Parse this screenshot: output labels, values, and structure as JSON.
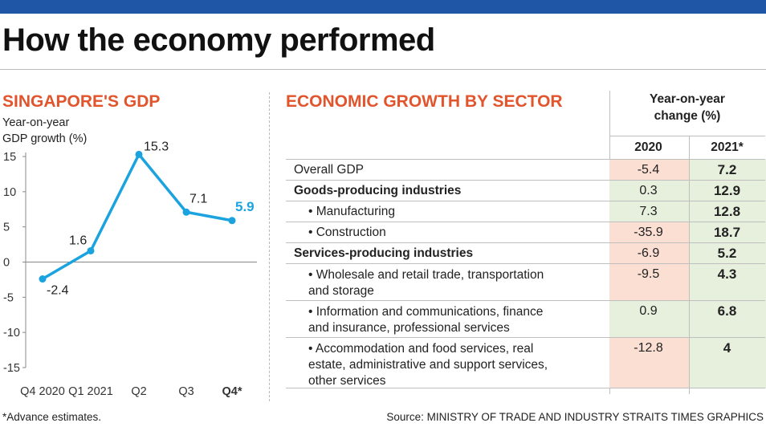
{
  "title": "How the economy performed",
  "footnote": "*Advance estimates.",
  "source": "Source: MINISTRY OF TRADE AND INDUSTRY   STRAITS TIMES GRAPHICS",
  "colors": {
    "accent": "#e2542c",
    "line": "#1ba3e0",
    "topbar": "#1f56a6",
    "neg_fill": "#fbdfd3",
    "pos_fill": "#e7efdd"
  },
  "chart_data": [
    {
      "type": "line",
      "title": "SINGAPORE'S GDP",
      "ylabel": "Year-on-year GDP growth (%)",
      "ylabel_lines": [
        "Year-on-year",
        "GDP growth (%)"
      ],
      "categories": [
        "Q4 2020",
        "Q1 2021",
        "Q2",
        "Q3",
        "Q4*"
      ],
      "values": [
        -2.4,
        1.6,
        15.3,
        7.1,
        5.9
      ],
      "value_labels": [
        "-2.4",
        "1.6",
        "15.3",
        "7.1",
        "5.9"
      ],
      "ylim": [
        -15,
        15
      ],
      "yticks": [
        "15",
        "10",
        "5",
        "0",
        "-5",
        "-10",
        "-15"
      ],
      "grid": false
    },
    {
      "type": "table",
      "title": "ECONOMIC GROWTH BY SECTOR",
      "header": [
        "Year-on-year",
        "change (%)"
      ],
      "columns": [
        "2020",
        "2021*"
      ],
      "rows": [
        {
          "label": "Overall GDP",
          "lines": [
            "Overall GDP"
          ],
          "v2020": "-5.4",
          "v2021": "7.2",
          "bold": false,
          "indent": false
        },
        {
          "label": "Goods-producing industries",
          "lines": [
            "Goods-producing industries"
          ],
          "v2020": "0.3",
          "v2021": "12.9",
          "bold": true,
          "indent": false
        },
        {
          "label": "• Manufacturing",
          "lines": [
            "• Manufacturing"
          ],
          "v2020": "7.3",
          "v2021": "12.8",
          "bold": false,
          "indent": true
        },
        {
          "label": "• Construction",
          "lines": [
            "• Construction"
          ],
          "v2020": "-35.9",
          "v2021": "18.7",
          "bold": false,
          "indent": true
        },
        {
          "label": "Services-producing industries",
          "lines": [
            "Services-producing industries"
          ],
          "v2020": "-6.9",
          "v2021": "5.2",
          "bold": true,
          "indent": false
        },
        {
          "label": "• Wholesale and retail trade, transportation and storage",
          "lines": [
            "• Wholesale and retail trade, transportation",
            "and storage"
          ],
          "v2020": "-9.5",
          "v2021": "4.3",
          "bold": false,
          "indent": true
        },
        {
          "label": "• Information and communications, finance and insurance, professional services",
          "lines": [
            "• Information and communications, finance",
            "and insurance, professional services"
          ],
          "v2020": "0.9",
          "v2021": "6.8",
          "bold": false,
          "indent": true
        },
        {
          "label": "• Accommodation and food services, real estate, administrative and support services, other services",
          "lines": [
            "• Accommodation and food services, real",
            "estate, administrative and support services,",
            "other services"
          ],
          "v2020": "-12.8",
          "v2021": "4",
          "bold": false,
          "indent": true
        }
      ]
    }
  ]
}
